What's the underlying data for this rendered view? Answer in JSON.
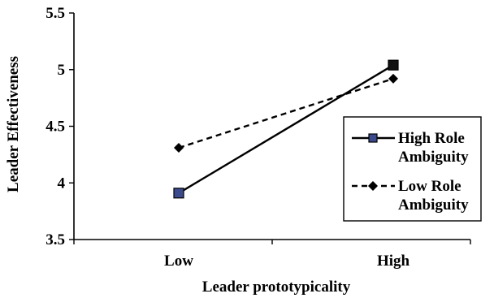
{
  "chart_data": {
    "type": "line",
    "categories": [
      "Low",
      "High"
    ],
    "xlabel": "Leader prototypicality",
    "ylabel": "Leader Effectiveness",
    "ylim": [
      3.5,
      5.5
    ],
    "yticks": [
      "3.5",
      "4",
      "4.5",
      "5",
      "5.5"
    ],
    "grid": false,
    "legend_position": "right",
    "series": [
      {
        "name_line1": "High Role",
        "name_line2": "Ambiguity",
        "values": [
          3.91,
          5.04
        ],
        "line_style": "solid",
        "marker": "square",
        "marker_color": "#3b4a8c"
      },
      {
        "name_line1": "Low Role",
        "name_line2": "Ambiguity",
        "values": [
          4.31,
          4.92
        ],
        "line_style": "dashed",
        "marker": "diamond",
        "marker_color": "#000000"
      }
    ]
  }
}
